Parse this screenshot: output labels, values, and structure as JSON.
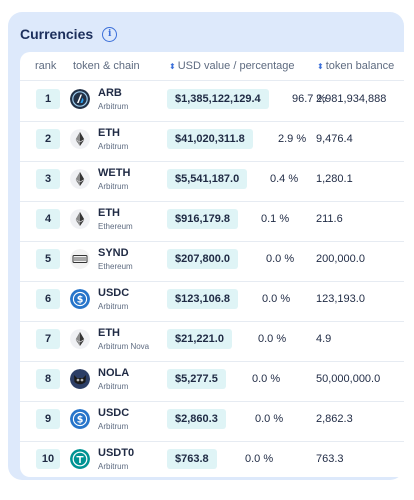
{
  "header": {
    "title": "Currencies",
    "info_icon": "info-icon"
  },
  "table": {
    "columns": {
      "rank": "rank",
      "token": "token & chain",
      "usd": "USD value / percentage",
      "balance": "token balance"
    },
    "rows": [
      {
        "rank": "1",
        "symbol": "ARB",
        "chain": "Arbitrum",
        "usd": "$1,385,122,129.4",
        "pct": "96.7 %",
        "balance": "2,981,934,888",
        "icon": "arbitrum-icon"
      },
      {
        "rank": "2",
        "symbol": "ETH",
        "chain": "Arbitrum",
        "usd": "$41,020,311.8",
        "pct": "2.9 %",
        "balance": "9,476.4",
        "icon": "ethereum-icon"
      },
      {
        "rank": "3",
        "symbol": "WETH",
        "chain": "Arbitrum",
        "usd": "$5,541,187.0",
        "pct": "0.4 %",
        "balance": "1,280.1",
        "icon": "ethereum-icon"
      },
      {
        "rank": "4",
        "symbol": "ETH",
        "chain": "Ethereum",
        "usd": "$916,179.8",
        "pct": "0.1 %",
        "balance": "211.6",
        "icon": "ethereum-icon"
      },
      {
        "rank": "5",
        "symbol": "SYND",
        "chain": "Ethereum",
        "usd": "$207,800.0",
        "pct": "0.0 %",
        "balance": "200,000.0",
        "icon": "synd-icon"
      },
      {
        "rank": "6",
        "symbol": "USDC",
        "chain": "Arbitrum",
        "usd": "$123,106.8",
        "pct": "0.0 %",
        "balance": "123,193.0",
        "icon": "usdc-icon"
      },
      {
        "rank": "7",
        "symbol": "ETH",
        "chain": "Arbitrum Nova",
        "usd": "$21,221.0",
        "pct": "0.0 %",
        "balance": "4.9",
        "icon": "ethereum-icon"
      },
      {
        "rank": "8",
        "symbol": "NOLA",
        "chain": "Arbitrum",
        "usd": "$5,277.5",
        "pct": "0.0 %",
        "balance": "50,000,000.0",
        "icon": "nola-icon"
      },
      {
        "rank": "9",
        "symbol": "USDC",
        "chain": "Arbitrum",
        "usd": "$2,860.3",
        "pct": "0.0 %",
        "balance": "2,862.3",
        "icon": "usdc-icon"
      },
      {
        "rank": "10",
        "symbol": "USDT0",
        "chain": "Arbitrum",
        "usd": "$763.8",
        "pct": "0.0 %",
        "balance": "763.3",
        "icon": "usdt0-icon"
      }
    ]
  },
  "colors": {
    "panel_bg": "#dde9fb",
    "badge_bg": "#dff4f6",
    "accent": "#3b6fd9",
    "arb": "#213147",
    "usdc": "#2775ca",
    "usdt0": "#009393"
  }
}
